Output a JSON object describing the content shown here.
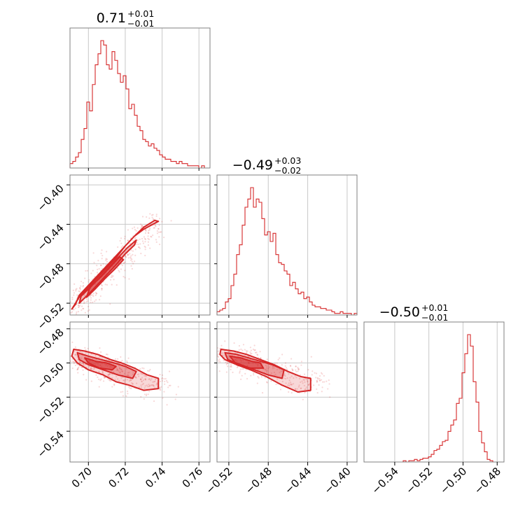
{
  "colors": {
    "series": "#d62728",
    "axis": "#808080",
    "grid": "#c8c8c8"
  },
  "chart_data": {
    "type": "corner",
    "titles": [
      {
        "main": "0.71",
        "plus": "+0.01",
        "minus": "−0.01"
      },
      {
        "main": "−0.49",
        "plus": "+0.03",
        "minus": "−0.02"
      },
      {
        "main": "−0.50",
        "plus": "+0.01",
        "minus": "−0.01"
      }
    ],
    "param_ranges": [
      [
        0.69,
        0.766
      ],
      [
        -0.532,
        -0.39
      ],
      [
        -0.558,
        -0.476
      ]
    ],
    "x_ticks": {
      "p0": {
        "values": [
          0.7,
          0.72,
          0.74,
          0.76
        ],
        "labels": [
          "0.70",
          "0.72",
          "0.74",
          "0.76"
        ]
      },
      "p1": {
        "values": [
          -0.52,
          -0.48,
          -0.44,
          -0.4
        ],
        "labels": [
          "−0.52",
          "−0.48",
          "−0.44",
          "−0.40"
        ]
      },
      "p2": {
        "values": [
          -0.54,
          -0.52,
          -0.5,
          -0.48
        ],
        "labels": [
          "−0.54",
          "−0.52",
          "−0.50",
          "−0.48"
        ]
      }
    },
    "y_ticks": {
      "p1": {
        "values": [
          -0.4,
          -0.44,
          -0.48,
          -0.52
        ],
        "labels": [
          "−0.40",
          "−0.44",
          "−0.48",
          "−0.52"
        ]
      },
      "p2": {
        "values": [
          -0.48,
          -0.5,
          -0.52,
          -0.54
        ],
        "labels": [
          "−0.48",
          "−0.50",
          "−0.52",
          "−0.54"
        ]
      }
    },
    "histograms": [
      {
        "param": 0,
        "bin_start": 0.69,
        "bin_end": 0.766,
        "counts": [
          2,
          3,
          5,
          7,
          13,
          18,
          30,
          26,
          38,
          47,
          52,
          58,
          56,
          47,
          45,
          53,
          49,
          43,
          39,
          42,
          36,
          27,
          29,
          24,
          19,
          17,
          13,
          12,
          10,
          11,
          9,
          8,
          6,
          5,
          4,
          4,
          3,
          3,
          2,
          3,
          2,
          2,
          1,
          1,
          1,
          1,
          0,
          1,
          0,
          0
        ]
      },
      {
        "param": 1,
        "bin_start": -0.532,
        "bin_end": -0.39,
        "counts": [
          2,
          3,
          4,
          8,
          10,
          18,
          25,
          37,
          43,
          55,
          66,
          71,
          78,
          66,
          71,
          69,
          59,
          49,
          51,
          45,
          50,
          37,
          32,
          31,
          27,
          25,
          18,
          20,
          16,
          13,
          14,
          10,
          11,
          8,
          6,
          5,
          5,
          4,
          4,
          3,
          3,
          2,
          1,
          1,
          2,
          1,
          1,
          1,
          0,
          1
        ]
      },
      {
        "param": 2,
        "bin_start": -0.558,
        "bin_end": -0.476,
        "counts": [
          0,
          0,
          0,
          0,
          0,
          0,
          0,
          0,
          0,
          0,
          0,
          0,
          0,
          0,
          1,
          0,
          1,
          1,
          2,
          1,
          2,
          3,
          3,
          4,
          6,
          9,
          10,
          13,
          16,
          17,
          24,
          29,
          33,
          46,
          50,
          70,
          85,
          100,
          91,
          63,
          47,
          24,
          15,
          8,
          2,
          1,
          0,
          0,
          0,
          0
        ]
      }
    ],
    "pair_panels": [
      {
        "x_param": 0,
        "y_param": 1,
        "trend": {
          "x": [
            0.692,
            0.738
          ],
          "y": [
            -0.523,
            -0.437
          ]
        },
        "scatter_spread": [
          0.004,
          0.007
        ],
        "contours": [
          {
            "level": "outer",
            "x": [
              0.691,
              0.695,
              0.7,
              0.705,
              0.71,
              0.715,
              0.72,
              0.725,
              0.73,
              0.735,
              0.738,
              0.736,
              0.73,
              0.725,
              0.72,
              0.715,
              0.71,
              0.705,
              0.7,
              0.695,
              0.693
            ],
            "y": [
              -0.526,
              -0.514,
              -0.504,
              -0.494,
              -0.484,
              -0.474,
              -0.462,
              -0.452,
              -0.445,
              -0.44,
              -0.437,
              -0.436,
              -0.443,
              -0.452,
              -0.462,
              -0.472,
              -0.482,
              -0.492,
              -0.502,
              -0.512,
              -0.521
            ]
          },
          {
            "level": "middle",
            "x": [
              0.695,
              0.7,
              0.705,
              0.71,
              0.715,
              0.72,
              0.725,
              0.726,
              0.721,
              0.716,
              0.711,
              0.706,
              0.701,
              0.696
            ],
            "y": [
              -0.52,
              -0.511,
              -0.501,
              -0.491,
              -0.481,
              -0.47,
              -0.461,
              -0.456,
              -0.464,
              -0.474,
              -0.484,
              -0.494,
              -0.504,
              -0.513
            ]
          },
          {
            "level": "inner",
            "x": [
              0.699,
              0.704,
              0.709,
              0.714,
              0.719,
              0.717,
              0.712,
              0.707,
              0.701
            ],
            "y": [
              -0.514,
              -0.505,
              -0.495,
              -0.486,
              -0.476,
              -0.473,
              -0.483,
              -0.493,
              -0.503
            ]
          }
        ]
      },
      {
        "x_param": 0,
        "y_param": 2,
        "trend": {
          "x": [
            0.692,
            0.738
          ],
          "y": [
            -0.497,
            -0.514
          ]
        },
        "scatter_spread": [
          0.006,
          0.004
        ],
        "contours": [
          {
            "level": "outer",
            "x": [
              0.692,
              0.698,
              0.705,
              0.712,
              0.718,
              0.725,
              0.732,
              0.738,
              0.738,
              0.73,
              0.722,
              0.715,
              0.708,
              0.7,
              0.694,
              0.691
            ],
            "y": [
              -0.492,
              -0.493,
              -0.495,
              -0.498,
              -0.5,
              -0.503,
              -0.507,
              -0.509,
              -0.515,
              -0.516,
              -0.513,
              -0.511,
              -0.507,
              -0.504,
              -0.5,
              -0.496
            ]
          },
          {
            "level": "middle",
            "x": [
              0.694,
              0.7,
              0.707,
              0.714,
              0.72,
              0.726,
              0.724,
              0.716,
              0.708,
              0.7,
              0.695
            ],
            "y": [
              -0.494,
              -0.496,
              -0.498,
              -0.5,
              -0.502,
              -0.505,
              -0.509,
              -0.507,
              -0.504,
              -0.501,
              -0.498
            ]
          },
          {
            "level": "inner",
            "x": [
              0.698,
              0.704,
              0.71,
              0.715,
              0.713,
              0.706,
              0.7
            ],
            "y": [
              -0.497,
              -0.499,
              -0.5,
              -0.502,
              -0.504,
              -0.503,
              -0.5
            ]
          }
        ]
      },
      {
        "x_param": 1,
        "y_param": 2,
        "trend": {
          "x": [
            -0.528,
            -0.43
          ],
          "y": [
            -0.496,
            -0.513
          ]
        },
        "scatter_spread": [
          0.012,
          0.004
        ],
        "contours": [
          {
            "level": "outer",
            "x": [
              -0.528,
              -0.515,
              -0.502,
              -0.488,
              -0.474,
              -0.46,
              -0.447,
              -0.437,
              -0.437,
              -0.45,
              -0.466,
              -0.482,
              -0.498,
              -0.512,
              -0.524,
              -0.529
            ],
            "y": [
              -0.492,
              -0.493,
              -0.495,
              -0.498,
              -0.501,
              -0.505,
              -0.508,
              -0.509,
              -0.516,
              -0.517,
              -0.513,
              -0.508,
              -0.504,
              -0.501,
              -0.498,
              -0.495
            ]
          },
          {
            "level": "middle",
            "x": [
              -0.524,
              -0.512,
              -0.5,
              -0.488,
              -0.476,
              -0.464,
              -0.466,
              -0.48,
              -0.494,
              -0.508,
              -0.521
            ],
            "y": [
              -0.494,
              -0.495,
              -0.497,
              -0.499,
              -0.501,
              -0.504,
              -0.509,
              -0.507,
              -0.504,
              -0.501,
              -0.498
            ]
          },
          {
            "level": "inner",
            "x": [
              -0.519,
              -0.508,
              -0.497,
              -0.488,
              -0.485,
              -0.498,
              -0.512
            ],
            "y": [
              -0.496,
              -0.497,
              -0.499,
              -0.5,
              -0.503,
              -0.503,
              -0.501
            ]
          }
        ]
      }
    ]
  }
}
